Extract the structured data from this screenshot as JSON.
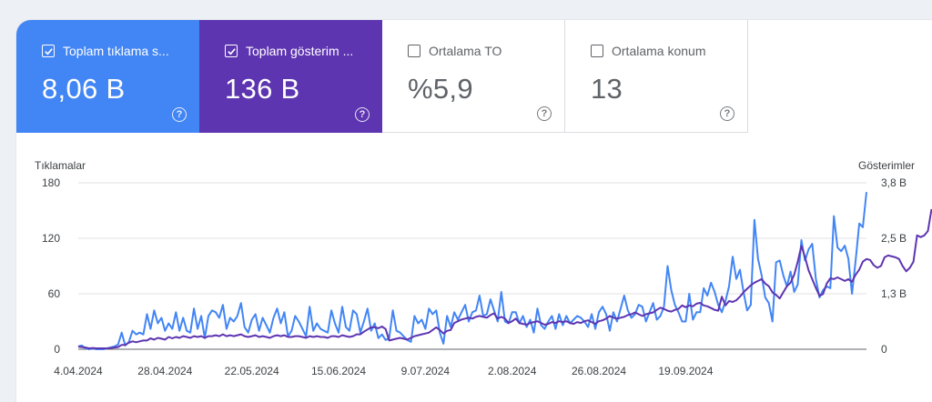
{
  "metrics": {
    "clicks": {
      "label": "Toplam tıklama s...",
      "value": "8,06 B",
      "checked": true,
      "color": "#4285f4"
    },
    "impressions": {
      "label": "Toplam gösterim ...",
      "value": "136 B",
      "checked": true,
      "color": "#5e35b1"
    },
    "ctr": {
      "label": "Ortalama TO",
      "value": "%5,9",
      "checked": false
    },
    "position": {
      "label": "Ortalama konum",
      "value": "13",
      "checked": false
    }
  },
  "help_glyph": "?",
  "chart_data": {
    "type": "line",
    "ylabel_left": "Tıklamalar",
    "ylabel_right": "Gösterimler",
    "left_ticks": [
      "0",
      "60",
      "120",
      "180"
    ],
    "right_ticks": [
      "0",
      "1,3 B",
      "2,5 B",
      "3,8 B"
    ],
    "ylim_left": [
      0,
      180
    ],
    "ylim_right": [
      0,
      3.8
    ],
    "x_tick_labels": [
      "4.04.2024",
      "28.04.2024",
      "22.05.2024",
      "15.06.2024",
      "9.07.2024",
      "2.08.2024",
      "26.08.2024",
      "19.09.2024"
    ],
    "x_start": "2024-04-04",
    "grid": true,
    "series": [
      {
        "name": "Tıklamalar",
        "axis": "left",
        "color": "#4285f4",
        "values": [
          3,
          4,
          1,
          0,
          1,
          0,
          0,
          0,
          1,
          2,
          3,
          5,
          18,
          4,
          8,
          20,
          16,
          18,
          16,
          38,
          22,
          42,
          28,
          34,
          20,
          28,
          22,
          40,
          20,
          34,
          20,
          18,
          44,
          22,
          36,
          12,
          36,
          42,
          40,
          34,
          48,
          22,
          34,
          30,
          36,
          50,
          24,
          18,
          32,
          38,
          20,
          34,
          26,
          18,
          34,
          44,
          28,
          40,
          14,
          20,
          36,
          30,
          22,
          14,
          46,
          20,
          28,
          22,
          20,
          18,
          42,
          28,
          18,
          46,
          24,
          20,
          42,
          38,
          18,
          30,
          44,
          20,
          28,
          12,
          16,
          10,
          12,
          42,
          20,
          18,
          14,
          10,
          8,
          36,
          28,
          32,
          22,
          44,
          38,
          42,
          18,
          6,
          36,
          24,
          40,
          32,
          40,
          48,
          30,
          40,
          42,
          58,
          36,
          38,
          54,
          42,
          30,
          62,
          30,
          28,
          40,
          40,
          28,
          36,
          24,
          32,
          18,
          44,
          26,
          22,
          30,
          36,
          22,
          38,
          26,
          36,
          28,
          32,
          36,
          34,
          30,
          24,
          38,
          22,
          40,
          46,
          38,
          20,
          40,
          30,
          44,
          58,
          42,
          34,
          38,
          48,
          46,
          30,
          40,
          50,
          32,
          36,
          46,
          90,
          64,
          48,
          40,
          30,
          30,
          60,
          32,
          40,
          40,
          66,
          58,
          72,
          62,
          48,
          40,
          52,
          68,
          100,
          76,
          86,
          62,
          42,
          48,
          140,
          98,
          80,
          56,
          50,
          30,
          94,
          96,
          80,
          68,
          84,
          62,
          70,
          118,
          96,
          108,
          114,
          76,
          56,
          64,
          68,
          66,
          144,
          110,
          106,
          112,
          98,
          60,
          96,
          136,
          132,
          170
        ]
      },
      {
        "name": "Gösterimler",
        "axis": "right",
        "color": "#5e35b1",
        "values": [
          0.06,
          0.05,
          0.04,
          0.02,
          0.03,
          0.02,
          0.02,
          0.02,
          0.02,
          0.03,
          0.04,
          0.05,
          0.1,
          0.1,
          0.15,
          0.18,
          0.16,
          0.18,
          0.2,
          0.2,
          0.25,
          0.22,
          0.26,
          0.24,
          0.22,
          0.28,
          0.25,
          0.28,
          0.26,
          0.3,
          0.28,
          0.26,
          0.3,
          0.28,
          0.3,
          0.26,
          0.3,
          0.3,
          0.32,
          0.3,
          0.34,
          0.3,
          0.32,
          0.3,
          0.32,
          0.34,
          0.3,
          0.28,
          0.3,
          0.32,
          0.28,
          0.3,
          0.28,
          0.26,
          0.3,
          0.32,
          0.3,
          0.32,
          0.28,
          0.28,
          0.3,
          0.3,
          0.28,
          0.26,
          0.3,
          0.28,
          0.3,
          0.28,
          0.28,
          0.26,
          0.3,
          0.3,
          0.28,
          0.32,
          0.3,
          0.28,
          0.3,
          0.34,
          0.34,
          0.4,
          0.45,
          0.5,
          0.5,
          0.48,
          0.52,
          0.46,
          0.2,
          0.22,
          0.24,
          0.26,
          0.24,
          0.22,
          0.26,
          0.3,
          0.32,
          0.34,
          0.36,
          0.38,
          0.44,
          0.5,
          0.44,
          0.36,
          0.42,
          0.44,
          0.6,
          0.64,
          0.68,
          0.7,
          0.72,
          0.7,
          0.74,
          0.76,
          0.74,
          0.72,
          0.78,
          0.82,
          0.7,
          0.74,
          0.7,
          0.6,
          0.64,
          0.7,
          0.6,
          0.58,
          0.56,
          0.6,
          0.62,
          0.64,
          0.6,
          0.56,
          0.58,
          0.62,
          0.6,
          0.64,
          0.62,
          0.64,
          0.6,
          0.58,
          0.62,
          0.6,
          0.64,
          0.66,
          0.62,
          0.58,
          0.64,
          0.66,
          0.7,
          0.76,
          0.72,
          0.7,
          0.72,
          0.74,
          0.78,
          0.8,
          0.84,
          0.8,
          0.76,
          0.8,
          0.82,
          0.84,
          0.9,
          0.95,
          0.92,
          0.88,
          0.86,
          0.9,
          0.92,
          1.0,
          0.96,
          1.0,
          0.98,
          1.04,
          1.06,
          1.0,
          0.98,
          0.94,
          0.9,
          0.88,
          1.2,
          1.0,
          1.1,
          1.08,
          1.12,
          1.2,
          1.3,
          1.38,
          1.46,
          1.52,
          1.56,
          1.6,
          1.5,
          1.44,
          1.3,
          1.24,
          1.16,
          1.3,
          1.44,
          1.52,
          1.7,
          2.0,
          2.36,
          2.1,
          1.8,
          1.6,
          1.4,
          1.22,
          1.26,
          1.5,
          1.62,
          1.6,
          1.64,
          1.6,
          1.56,
          1.6,
          1.54,
          1.7,
          1.82,
          2.0,
          2.06,
          2.04,
          1.92,
          1.86,
          1.9,
          2.1,
          2.14,
          2.12,
          2.1,
          2.06,
          1.9,
          1.78,
          1.86,
          2.0,
          2.6,
          2.56,
          2.6,
          2.7,
          3.2
        ]
      }
    ]
  }
}
